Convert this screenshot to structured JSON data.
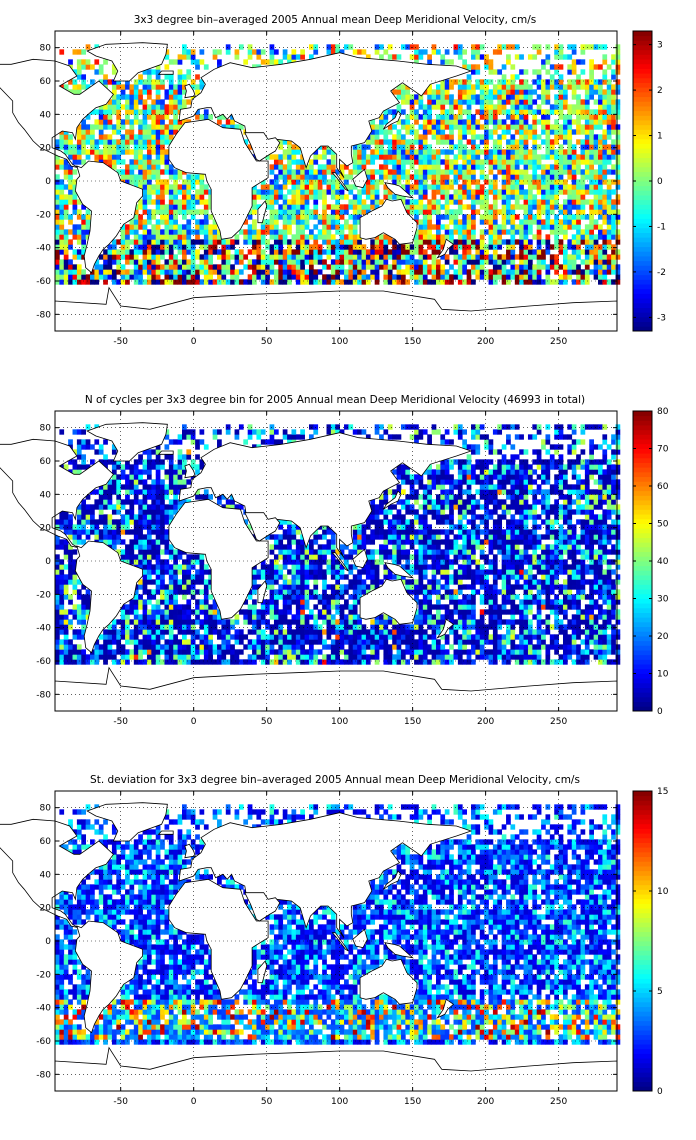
{
  "colors": {
    "land": "#ffffff",
    "coast": "#000000",
    "grid": "#000000"
  },
  "chart_data": [
    {
      "type": "heatmap",
      "title": "3x3 degree bin–averaged 2005 Annual mean Deep Meridional Velocity, cm/s",
      "xlabel": "",
      "ylabel": "",
      "xlim": [
        -95,
        290
      ],
      "ylim": [
        -90,
        90
      ],
      "xticks": [
        -50,
        0,
        50,
        100,
        150,
        200,
        250
      ],
      "yticks": [
        -80,
        -60,
        -40,
        -20,
        0,
        20,
        40,
        60,
        80
      ],
      "colormap": "jet",
      "color_range": [
        -3.3,
        3.3
      ],
      "colorbar_ticks": [
        -3,
        -2,
        -1,
        0,
        1,
        2,
        3
      ],
      "bin_size_deg": 3,
      "field": "signed_velocity"
    },
    {
      "type": "heatmap",
      "title": "N of cycles per 3x3 degree bin for 2005 Annual mean Deep Meridional Velocity (46993 in total)",
      "xlabel": "",
      "ylabel": "",
      "xlim": [
        -95,
        290
      ],
      "ylim": [
        -90,
        90
      ],
      "xticks": [
        -50,
        0,
        50,
        100,
        150,
        200,
        250
      ],
      "yticks": [
        -80,
        -60,
        -40,
        -20,
        0,
        20,
        40,
        60,
        80
      ],
      "colormap": "jet",
      "color_range": [
        0,
        80
      ],
      "colorbar_ticks": [
        0,
        10,
        20,
        30,
        40,
        50,
        60,
        70,
        80
      ],
      "bin_size_deg": 3,
      "total_cycles": 46993,
      "field": "count"
    },
    {
      "type": "heatmap",
      "title": "St. deviation for 3x3 degree bin–averaged 2005 Annual mean Deep Meridional Velocity, cm/s",
      "xlabel": "",
      "ylabel": "",
      "xlim": [
        -95,
        290
      ],
      "ylim": [
        -90,
        90
      ],
      "xticks": [
        -50,
        0,
        50,
        100,
        150,
        200,
        250
      ],
      "yticks": [
        -80,
        -60,
        -40,
        -20,
        0,
        20,
        40,
        60,
        80
      ],
      "colormap": "jet",
      "color_range": [
        0,
        15
      ],
      "colorbar_ticks": [
        0,
        5,
        10,
        15
      ],
      "bin_size_deg": 3,
      "field": "std"
    }
  ]
}
